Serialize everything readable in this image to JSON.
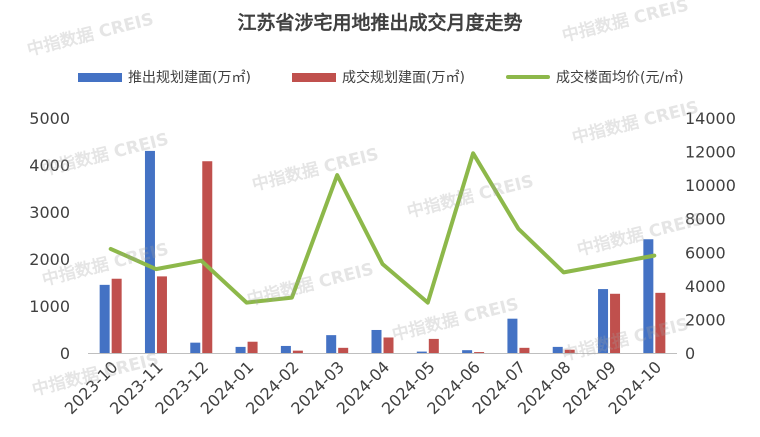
{
  "watermark": "中指数据 CREIS",
  "colors": {
    "bar1": "#4472C4",
    "bar2": "#C0504D",
    "line": "#8DB84A",
    "text": "#404040"
  },
  "chart_data": {
    "type": "bar+line",
    "title": "江苏省涉宅用地推出成交月度走势",
    "categories": [
      "2023-10",
      "2023-11",
      "2023-12",
      "2024-01",
      "2024-02",
      "2024-03",
      "2024-04",
      "2024-05",
      "2024-06",
      "2024-07",
      "2024-08",
      "2024-09",
      "2024-10"
    ],
    "series": [
      {
        "name": "推出规划建面(万㎡)",
        "type": "bar",
        "axis": "left",
        "values": [
          1450,
          4300,
          220,
          130,
          150,
          380,
          490,
          30,
          60,
          730,
          130,
          1360,
          2420
        ]
      },
      {
        "name": "成交规划建面(万㎡)",
        "type": "bar",
        "axis": "left",
        "values": [
          1580,
          1630,
          4080,
          240,
          50,
          110,
          330,
          300,
          20,
          110,
          70,
          1260,
          1280
        ]
      },
      {
        "name": "成交楼面均价(元/㎡)",
        "type": "line",
        "axis": "right",
        "values": [
          6200,
          5000,
          5500,
          3000,
          3300,
          10600,
          5300,
          3000,
          11900,
          7400,
          4800,
          5300,
          5800
        ]
      }
    ],
    "y_left": {
      "min": 0,
      "max": 5000,
      "ticks": [
        0,
        1000,
        2000,
        3000,
        4000,
        5000
      ]
    },
    "y_right": {
      "min": 0,
      "max": 14000,
      "ticks": [
        0,
        2000,
        4000,
        6000,
        8000,
        10000,
        12000,
        14000
      ]
    },
    "grid": false,
    "legend_position": "top"
  }
}
